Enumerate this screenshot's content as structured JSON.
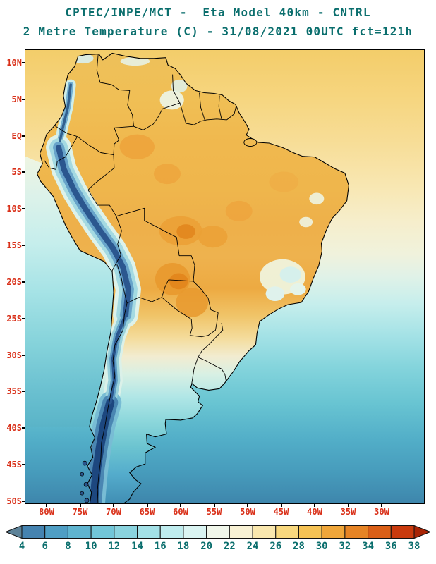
{
  "header": {
    "line1": "CPTEC/INPE/MCT -  Eta Model 40km - CNTRL",
    "line2": "2 Metre Temperature (C) - 31/08/2021 00UTC fct=121h"
  },
  "map": {
    "lat_labels": [
      "10N",
      "5N",
      "EQ",
      "5S",
      "10S",
      "15S",
      "20S",
      "25S",
      "30S",
      "35S",
      "40S",
      "45S",
      "50S"
    ],
    "lon_labels": [
      "80W",
      "75W",
      "70W",
      "65W",
      "60W",
      "55W",
      "50W",
      "45W",
      "40W",
      "35W",
      "30W"
    ]
  },
  "colorbar": {
    "tick_labels": [
      "4",
      "6",
      "8",
      "10",
      "12",
      "14",
      "16",
      "18",
      "20",
      "22",
      "24",
      "26",
      "28",
      "30",
      "32",
      "34",
      "36",
      "38"
    ],
    "segment_colors": [
      "#4583b0",
      "#4f9ec4",
      "#5fb4cf",
      "#72c6d8",
      "#8ad3de",
      "#a3e0e6",
      "#bfecee",
      "#daf4f2",
      "#f0f6ea",
      "#f8f1d4",
      "#f9e7ae",
      "#f8d87e",
      "#f5c254",
      "#efa63a",
      "#e68425",
      "#da5f17",
      "#c93a0d"
    ],
    "arrow_left_color": "#5d8298",
    "arrow_right_color": "#a82405"
  },
  "colors": {
    "title": "#0a6e6d",
    "axis_labels": "#d92f18",
    "scale_labels": "#0a6e6d"
  }
}
